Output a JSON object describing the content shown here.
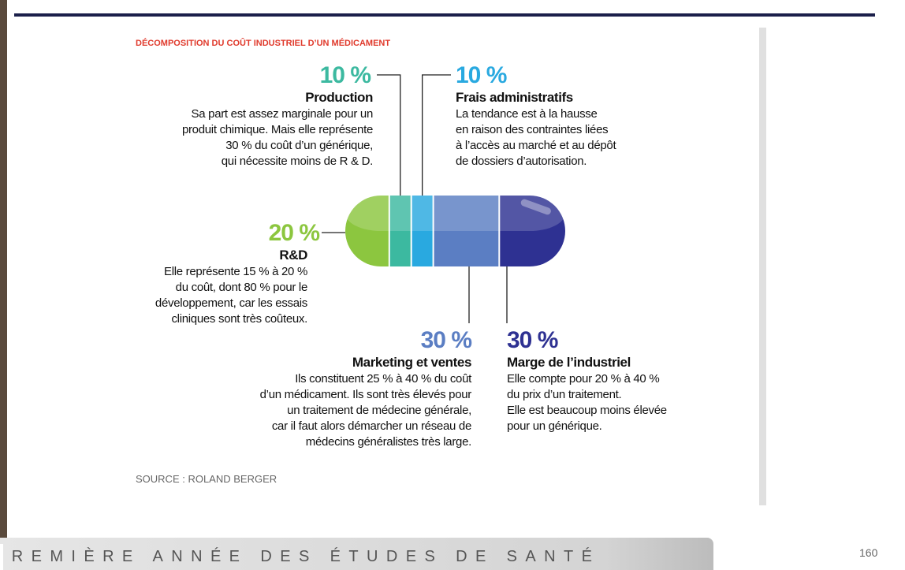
{
  "title": "DÉCOMPOSITION DU COÛT INDUSTRIEL D’UN MÉDICAMENT",
  "segments": [
    {
      "value": 20,
      "label": "20 %",
      "name": "R&D",
      "color": "#8cc63f",
      "lines": [
        "Elle représente 15 % à 20 %",
        "du coût, dont 80 % pour le",
        "développement, car les essais",
        "cliniques sont très coûteux."
      ]
    },
    {
      "value": 10,
      "label": "10 %",
      "name": "Production",
      "color": "#3cb9a0",
      "lines": [
        "Sa part est assez  marginale pour un",
        "produit chimique. Mais elle représente",
        "30 % du coût d’un générique,",
        "qui nécessite moins de R & D."
      ]
    },
    {
      "value": 10,
      "label": "10 %",
      "name": "Frais administratifs",
      "color": "#29a9e0",
      "lines": [
        "La tendance est à la hausse",
        "en raison des contraintes liées",
        "à l’accès au marché et au dépôt",
        "de dossiers d’autorisation."
      ]
    },
    {
      "value": 30,
      "label": "30 %",
      "name": "Marketing et ventes",
      "color": "#5b7ec3",
      "lines": [
        "Ils constituent 25 % à 40 % du coût",
        "d’un médicament. Ils sont très élevés pour",
        "un traitement de médecine générale,",
        "car il faut alors démarcher un réseau de",
        "médecins généralistes très large."
      ]
    },
    {
      "value": 30,
      "label": "30 %",
      "name": "Marge de l’industriel",
      "color": "#2e3192",
      "lines": [
        "Elle compte pour 20 % à 40 %",
        "du prix d’un traitement.",
        "Elle est beaucoup moins élevée",
        "pour un générique."
      ]
    }
  ],
  "source": "SOURCE : ROLAND BERGER",
  "footer": "PREMIÈRE ANNÉE DES ÉTUDES DE SANTÉ",
  "page_number": "160"
}
